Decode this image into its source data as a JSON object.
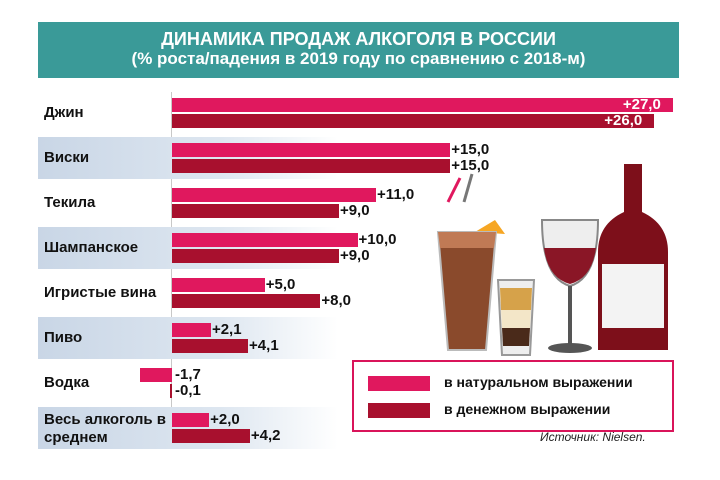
{
  "title": "ДИНАМИКА ПРОДАЖ АЛКОГОЛЯ В РОССИИ",
  "subtitle": "(% роста/падения в 2019 году по сравнению с 2018-м)",
  "source": "Источник: Nielsen.",
  "legend": {
    "natural": "в натуральном выражении",
    "money": "в денежном выражении"
  },
  "colors": {
    "natural": "#e0185e",
    "money": "#a8102e",
    "header": "#3a9a98"
  },
  "chart_data": {
    "type": "bar",
    "orientation": "horizontal",
    "title": "ДИНАМИКА ПРОДАЖ АЛКОГОЛЯ В РОССИИ",
    "subtitle": "(% роста/падения в 2019 году по сравнению с 2018-м)",
    "categories": [
      "Джин",
      "Виски",
      "Текила",
      "Шампанское",
      "Игристые вина",
      "Пиво",
      "Водка",
      "Весь алкоголь в среднем"
    ],
    "series": [
      {
        "name": "в натуральном выражении",
        "values": [
          27.0,
          15.0,
          11.0,
          10.0,
          5.0,
          2.1,
          -1.7,
          2.0
        ],
        "labels": [
          "+27,0",
          "+15,0",
          "+11,0",
          "+10,0",
          "+5,0",
          "+2,1",
          "-1,7",
          "+2,0"
        ]
      },
      {
        "name": "в денежном выражении",
        "values": [
          26.0,
          15.0,
          9.0,
          9.0,
          8.0,
          4.1,
          -0.1,
          4.2
        ],
        "labels": [
          "+26,0",
          "+15,0",
          "+9,0",
          "+9,0",
          "+8,0",
          "+4,1",
          "-0,1",
          "+4,2"
        ]
      }
    ],
    "xlim": [
      -2,
      27
    ],
    "legend_position": "bottom-right",
    "grid": false
  }
}
